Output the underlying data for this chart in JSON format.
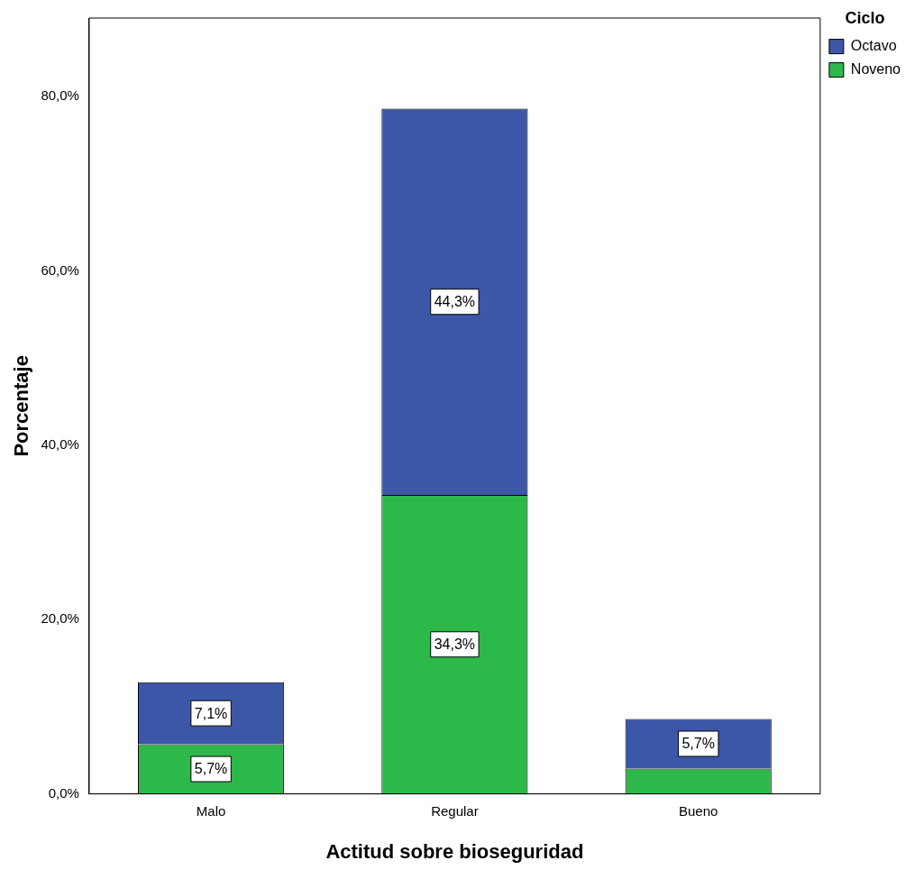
{
  "chart_data": {
    "type": "bar",
    "stacked": true,
    "xlabel": "Actitud sobre bioseguridad",
    "ylabel": "Porcentaje",
    "legend_title": "Ciclo",
    "legend": "top right",
    "grid": false,
    "categories": [
      "Malo",
      "Regular",
      "Bueno"
    ],
    "series": [
      {
        "name": "Noveno",
        "color": "#2db84a",
        "values": [
          5.7,
          34.3,
          2.9
        ],
        "value_labels": [
          "5,7%",
          "34,3%",
          null
        ]
      },
      {
        "name": "Octavo",
        "color": "#3c56a8",
        "values": [
          7.1,
          44.3,
          5.7
        ],
        "value_labels": [
          "7,1%",
          "44,3%",
          "5,7%"
        ]
      }
    ],
    "ylim": [
      0,
      89
    ],
    "yticks": [
      {
        "value": 0,
        "label": "0,0%"
      },
      {
        "value": 20,
        "label": "20,0%"
      },
      {
        "value": 40,
        "label": "40,0%"
      },
      {
        "value": 60,
        "label": "60,0%"
      },
      {
        "value": 80,
        "label": "80,0%"
      }
    ]
  }
}
